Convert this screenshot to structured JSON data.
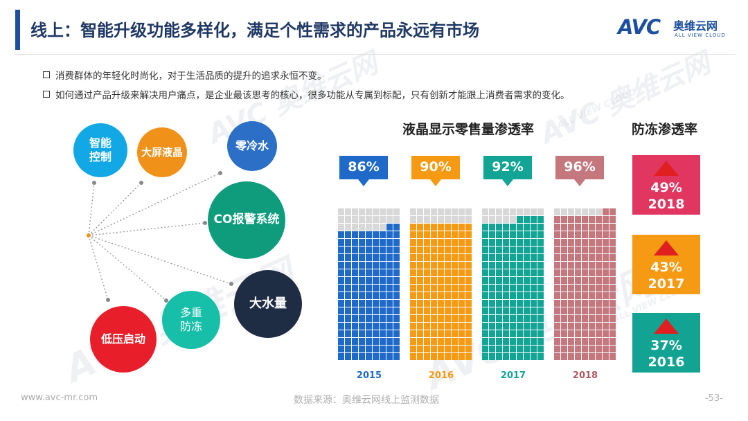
{
  "header": {
    "title": "线上：智能升级功能多样化，满足个性需求的产品永远有市场",
    "logo_brand": "AVC",
    "logo_cn": "奥维云网",
    "logo_en": "ALL VIEW CLOUD"
  },
  "watermark": {
    "brand": "AVC",
    "cn": "奥维云网",
    "en": "ALL VIEW CLOUD"
  },
  "bullets": [
    "消费群体的年轻化时尚化，对于生活品质的提升的追求永恒不变。",
    "如何通过产品升级来解决用户痛点，是企业最该思考的核心，很多功能从专属到标配，只有创新才能跟上消费者需求的变化。"
  ],
  "features": [
    {
      "label": "智能\n控制",
      "color": "#12a8e6"
    },
    {
      "label": "大屏液晶",
      "color": "#f0921a"
    },
    {
      "label": "零冷水",
      "color": "#2c6fc6"
    },
    {
      "label": "CO报警系统",
      "color": "#0e9c7c"
    },
    {
      "label": "大水量",
      "color": "#1f2d44"
    },
    {
      "label": "多重\n防冻",
      "color": "#18bfa8"
    },
    {
      "label": "低压启动",
      "color": "#e81f2a"
    }
  ],
  "chart_data": [
    {
      "type": "waffle",
      "title": "液晶显示零售量渗透率",
      "categories": [
        "2015",
        "2016",
        "2017",
        "2018"
      ],
      "values": [
        86,
        90,
        92,
        96
      ],
      "value_labels": [
        "86%",
        "90%",
        "92%",
        "96%"
      ],
      "colors": [
        "#1f69c9",
        "#f59a12",
        "#12a596",
        "#c4777d"
      ],
      "unit": "%"
    },
    {
      "type": "table",
      "title": "防冻渗透率",
      "categories": [
        "2018",
        "2017",
        "2016"
      ],
      "values": [
        49,
        43,
        37
      ],
      "value_labels": [
        "49%",
        "43%",
        "37%"
      ],
      "colors": [
        "#e0365f",
        "#f59a12",
        "#13a393"
      ],
      "unit": "%"
    }
  ],
  "footer": {
    "url": "www.avc-mr.com",
    "source": "数据来源：奥维云网线上监测数据",
    "page": "-53-"
  }
}
